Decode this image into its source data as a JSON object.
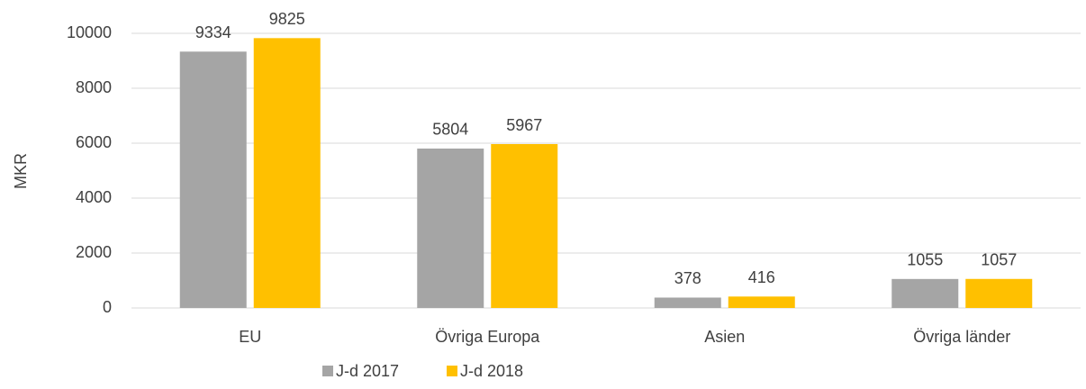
{
  "chart_data": {
    "type": "bar",
    "y_label": "MKR",
    "categories": [
      "EU",
      "Övriga Europa",
      "Asien",
      "Övriga länder"
    ],
    "series": [
      {
        "name": "J-d 2017",
        "color": "#a5a5a5",
        "values": [
          9334,
          5804,
          378,
          1055
        ]
      },
      {
        "name": "J-d 2018",
        "color": "#ffc000",
        "values": [
          9825,
          5967,
          416,
          1057
        ]
      }
    ],
    "ylim": [
      0,
      10000
    ],
    "yticks": [
      0,
      2000,
      4000,
      6000,
      8000,
      10000
    ],
    "grid": true,
    "legend": "bottom"
  }
}
